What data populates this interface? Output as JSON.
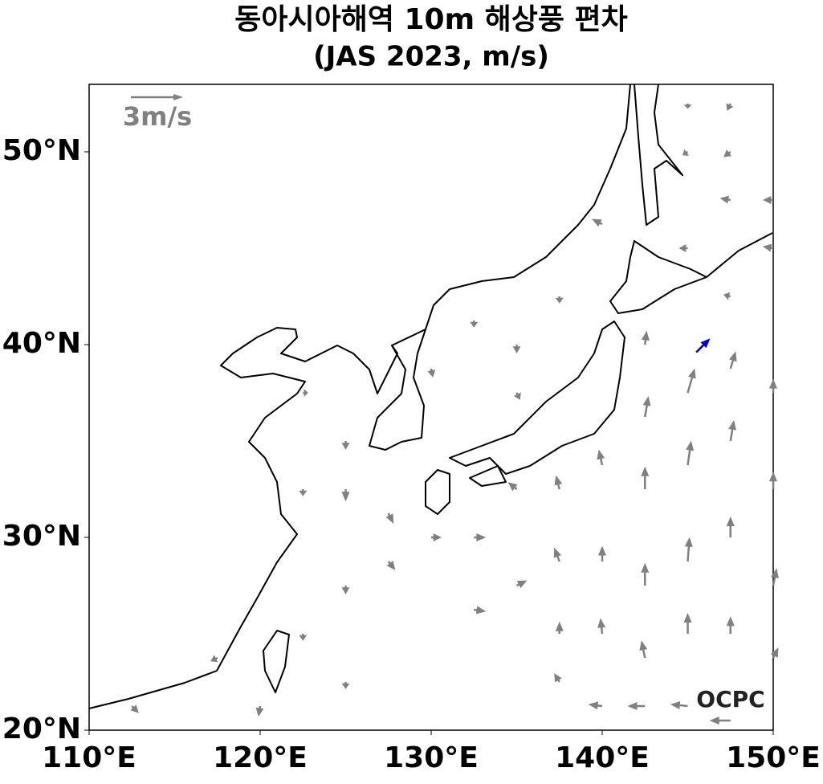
{
  "map": {
    "title": "동아시아해역 10m 해상풍 편차",
    "subtitle": "(JAS 2023, m/s)",
    "xlim": [
      110,
      150
    ],
    "ylim": [
      20,
      53.5
    ],
    "xticks": [
      {
        "value": 110,
        "label": "110°E"
      },
      {
        "value": 120,
        "label": "120°E"
      },
      {
        "value": 130,
        "label": "130°E"
      },
      {
        "value": 140,
        "label": "140°E"
      },
      {
        "value": 150,
        "label": "150°E"
      }
    ],
    "yticks": [
      {
        "value": 20,
        "label": "20°N"
      },
      {
        "value": 30,
        "label": "30°N"
      },
      {
        "value": 40,
        "label": "40°N"
      },
      {
        "value": 50,
        "label": "50°N"
      }
    ],
    "reference": {
      "value": 3,
      "label": "3m/s",
      "color": "#808080"
    },
    "vector_color": "#808080",
    "highlight_color": "#0000cc",
    "highlight": [
      145.5,
      39.6,
      0.8,
      0.8
    ],
    "vectors": [
      [
        145,
        52.5,
        0,
        -0.3
      ],
      [
        147.5,
        52.5,
        -0.2,
        -0.4
      ],
      [
        145,
        50,
        -0.3,
        -0.2
      ],
      [
        147.5,
        50,
        -0.4,
        -0.3
      ],
      [
        147.5,
        47.5,
        -0.6,
        0.1
      ],
      [
        150,
        47.5,
        -0.6,
        0
      ],
      [
        145,
        45,
        -0.5,
        0
      ],
      [
        150,
        45,
        -0.6,
        0.1
      ],
      [
        140,
        46.25,
        -0.6,
        0.3
      ],
      [
        137.5,
        42.5,
        0,
        -0.4
      ],
      [
        135,
        40,
        0,
        -0.5
      ],
      [
        132.5,
        41.25,
        0,
        -0.4
      ],
      [
        130,
        38.75,
        0.1,
        -0.5
      ],
      [
        135,
        37.5,
        0.2,
        -0.4
      ],
      [
        122.5,
        37.5,
        0.3,
        0
      ],
      [
        125,
        35,
        0,
        -0.5
      ],
      [
        122.5,
        32.5,
        0,
        -0.4
      ],
      [
        125,
        32.5,
        0,
        -0.7
      ],
      [
        127.5,
        31.25,
        0.3,
        -0.6
      ],
      [
        125,
        27.5,
        0,
        -0.5
      ],
      [
        127.5,
        28.75,
        0.4,
        -0.5
      ],
      [
        122.5,
        25,
        0,
        -0.4
      ],
      [
        125,
        22.5,
        0,
        -0.4
      ],
      [
        120,
        21.25,
        -0.1,
        -0.6
      ],
      [
        117.5,
        23.75,
        -0.4,
        -0.2
      ],
      [
        112.5,
        21.25,
        0.4,
        -0.4
      ],
      [
        130,
        30,
        0.6,
        0
      ],
      [
        132.5,
        30,
        0.7,
        0
      ],
      [
        132.5,
        26.25,
        0.7,
        -0.1
      ],
      [
        135,
        32.5,
        -0.5,
        0.4
      ],
      [
        135,
        27.5,
        0.6,
        0.3
      ],
      [
        137.5,
        32.5,
        -0.2,
        0.8
      ],
      [
        137.5,
        28.75,
        -0.3,
        0.8
      ],
      [
        137.5,
        25,
        0,
        0.7
      ],
      [
        140,
        33.75,
        -0.2,
        0.9
      ],
      [
        140,
        28.75,
        0,
        0.9
      ],
      [
        140,
        25,
        -0.1,
        0.9
      ],
      [
        142.5,
        36.25,
        0.2,
        1.2
      ],
      [
        142.5,
        32.5,
        0,
        1.3
      ],
      [
        142.5,
        27.5,
        0,
        1.3
      ],
      [
        142.5,
        23.75,
        -0.2,
        1
      ],
      [
        145,
        37.5,
        0.4,
        1.4
      ],
      [
        145,
        33.75,
        0.2,
        1.4
      ],
      [
        145,
        28.75,
        0.1,
        1.4
      ],
      [
        145,
        25,
        0,
        1.2
      ],
      [
        147.5,
        38.75,
        0.3,
        1
      ],
      [
        147.5,
        35,
        0.2,
        1.2
      ],
      [
        147.5,
        30,
        0,
        1.2
      ],
      [
        147.5,
        25,
        0,
        1
      ],
      [
        150,
        37.5,
        0,
        0.8
      ],
      [
        150,
        32.5,
        0,
        1
      ],
      [
        150,
        27.5,
        0.2,
        1
      ],
      [
        150,
        23.75,
        0.3,
        0.6
      ],
      [
        142.5,
        21.25,
        -1,
        0
      ],
      [
        145,
        21.25,
        -1,
        0.1
      ],
      [
        147.5,
        20.5,
        -1.2,
        0
      ],
      [
        140,
        21.25,
        -0.8,
        0.1
      ],
      [
        137.5,
        22.5,
        -0.3,
        0.5
      ],
      [
        142.5,
        40,
        0.1,
        0.8
      ],
      [
        147.5,
        42.5,
        -0.4,
        0.1
      ]
    ],
    "logo": "OCPC"
  }
}
